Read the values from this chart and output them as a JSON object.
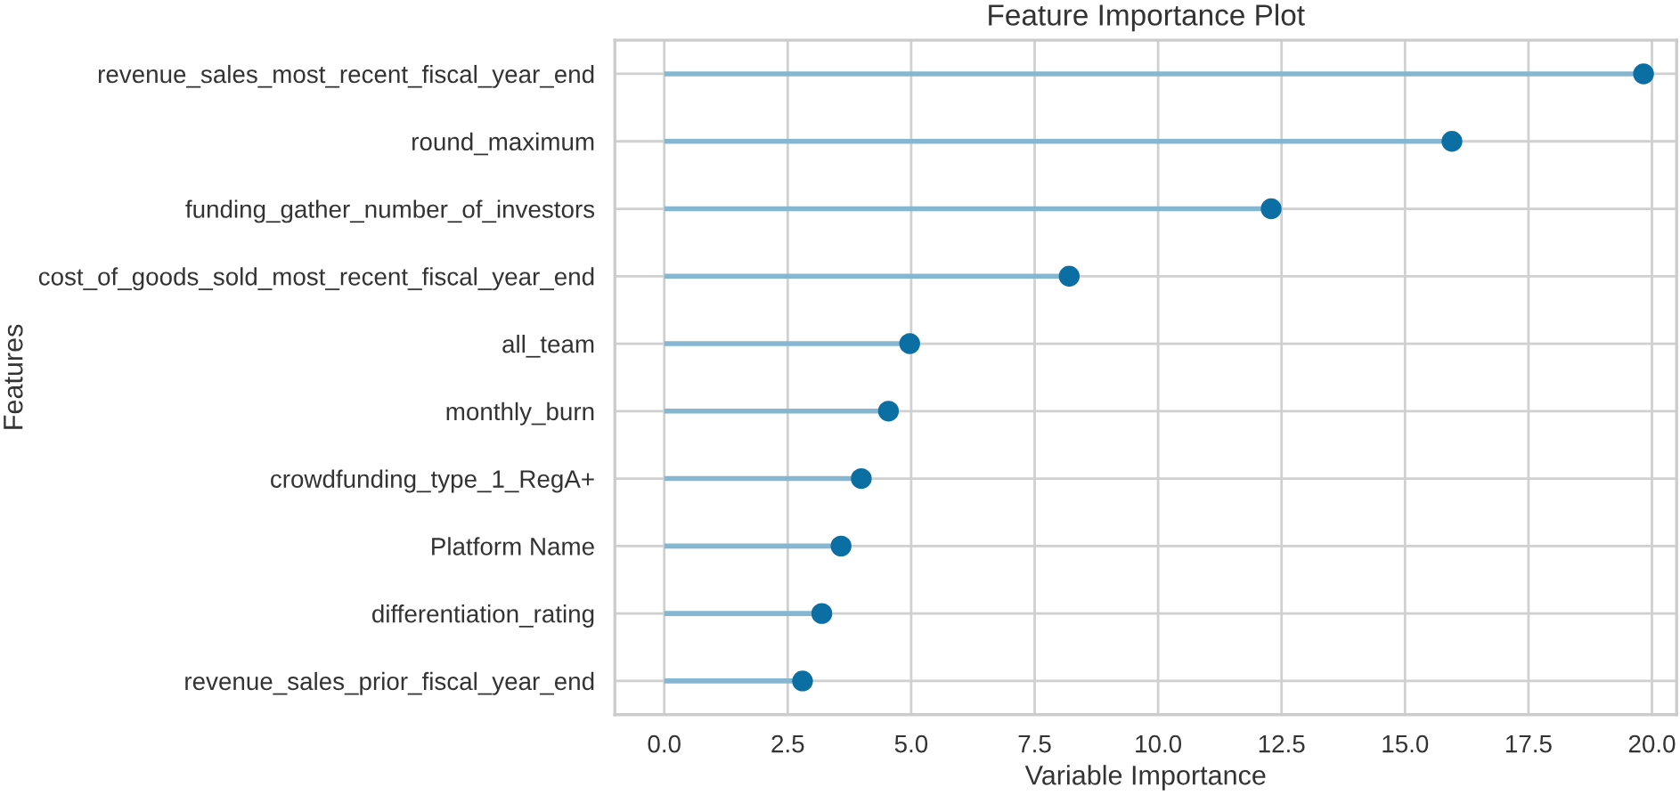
{
  "chart_data": {
    "type": "lollipop",
    "orientation": "horizontal",
    "title": "Feature Importance Plot",
    "xlabel": "Variable Importance",
    "ylabel": "Features",
    "categories": [
      "revenue_sales_most_recent_fiscal_year_end",
      "round_maximum",
      "funding_gather_number_of_investors",
      "cost_of_goods_sold_most_recent_fiscal_year_end",
      "all_team",
      "monthly_burn",
      "crowdfunding_type_1_RegA+",
      "Platform Name",
      "differentiation_rating",
      "revenue_sales_prior_fiscal_year_end"
    ],
    "series": [
      {
        "color": "#0b6fa4",
        "values": [
          19.83,
          15.95,
          12.29,
          8.2,
          4.97,
          4.54,
          3.99,
          3.58,
          3.19,
          2.8
        ]
      }
    ],
    "marker": "circle",
    "xlim": [
      -1.0,
      20.5
    ],
    "xticks": [
      {
        "value": 0,
        "label": "0.0"
      },
      {
        "value": 2.5,
        "label": "2.5"
      },
      {
        "value": 5,
        "label": "5.0"
      },
      {
        "value": 7.5,
        "label": "7.5"
      },
      {
        "value": 10,
        "label": "10.0"
      },
      {
        "value": 12.5,
        "label": "12.5"
      },
      {
        "value": 15,
        "label": "15.0"
      },
      {
        "value": 17.5,
        "label": "17.5"
      },
      {
        "value": 20,
        "label": "20.0"
      }
    ],
    "grid": true,
    "legend": false
  }
}
